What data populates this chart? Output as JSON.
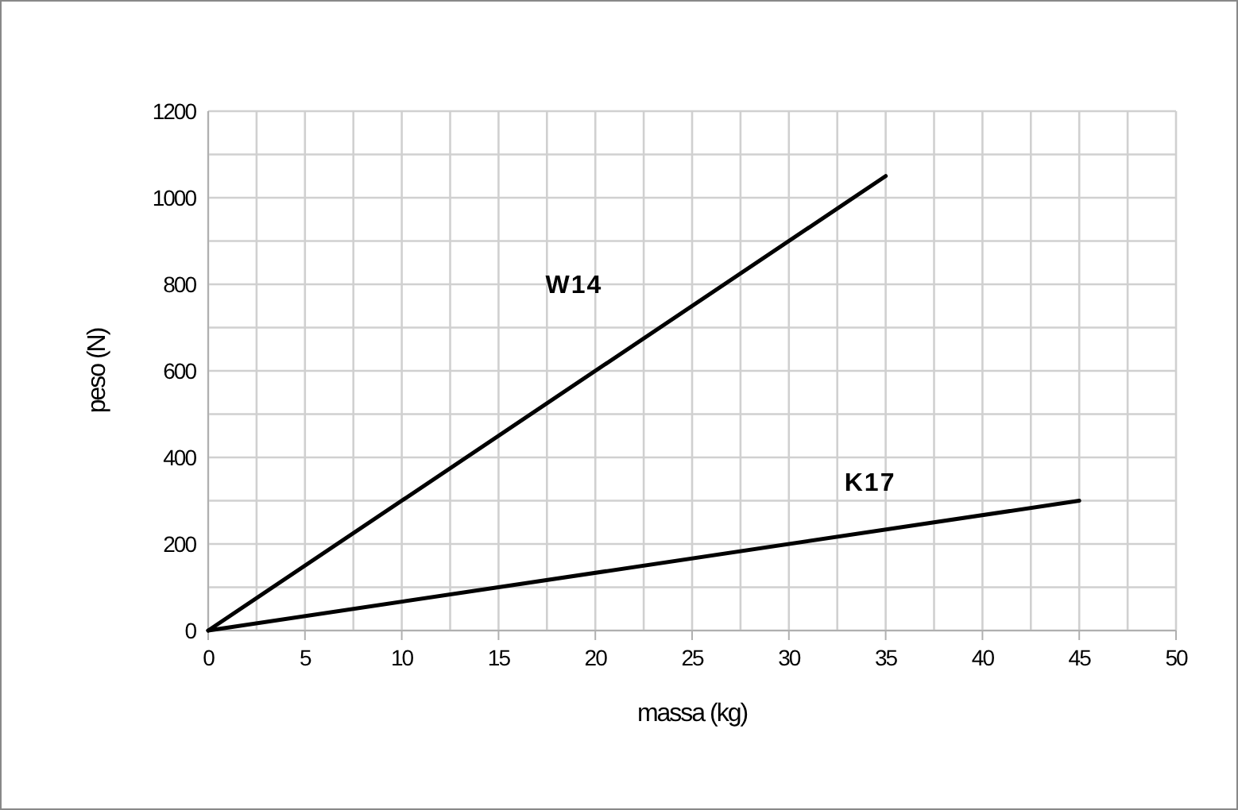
{
  "chart_data": {
    "type": "line",
    "xlabel": "massa (kg)",
    "ylabel": "peso (N)",
    "xlim": [
      0,
      50
    ],
    "ylim": [
      0,
      1200
    ],
    "xticks": [
      0,
      {
        "value": 2.5,
        "label": null
      },
      5,
      {
        "value": 7.5,
        "label": null
      },
      10,
      {
        "value": 12.5,
        "label": null
      },
      15,
      {
        "value": 17.5,
        "label": null
      },
      20,
      {
        "value": 22.5,
        "label": null
      },
      25,
      {
        "value": 27.5,
        "label": null
      },
      30,
      {
        "value": 32.5,
        "label": null
      },
      35,
      {
        "value": 37.5,
        "label": null
      },
      40,
      {
        "value": 42.5,
        "label": null
      },
      45,
      {
        "value": 47.5,
        "label": null
      },
      50
    ],
    "yticks": [
      0,
      {
        "value": 100,
        "label": null
      },
      200,
      {
        "value": 300,
        "label": null
      },
      400,
      {
        "value": 500,
        "label": null
      },
      600,
      {
        "value": 700,
        "label": null
      },
      800,
      {
        "value": 900,
        "label": null
      },
      1000,
      {
        "value": 1100,
        "label": null
      },
      1200
    ],
    "grid": true,
    "marker": "none",
    "line_style": "solid",
    "series": [
      {
        "name": "W14",
        "color": "#000000",
        "x": [
          0,
          35
        ],
        "values": [
          0,
          1050
        ]
      },
      {
        "name": "K17",
        "color": "#000000",
        "x": [
          0,
          45
        ],
        "values": [
          0,
          300
        ]
      }
    ]
  }
}
